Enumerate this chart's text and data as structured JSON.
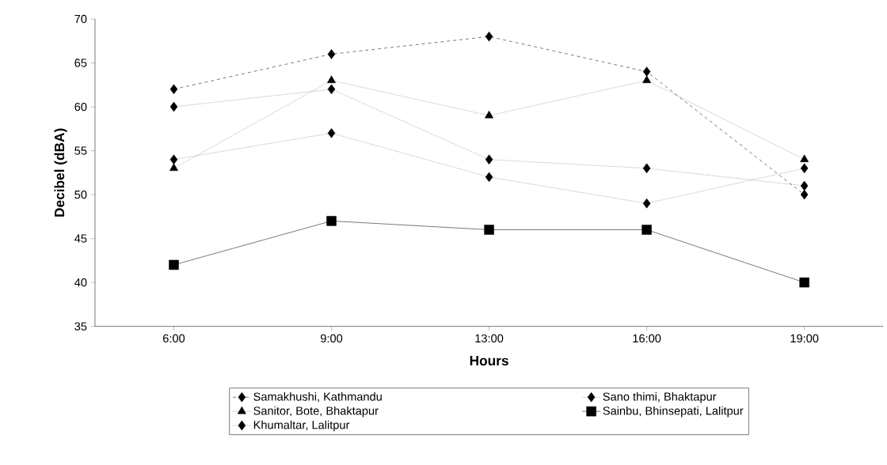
{
  "chart_data": {
    "type": "line",
    "xlabel": "Hours",
    "ylabel": "Decibel (dBA)",
    "categories": [
      "6:00",
      "9:00",
      "13:00",
      "16:00",
      "19:00"
    ],
    "series": [
      {
        "name": "Samakhushi, Kathmandu",
        "color": "#000000",
        "marker": "diamond",
        "line_style": "dashed",
        "values": [
          62,
          66,
          68,
          64,
          50
        ]
      },
      {
        "name": "Sano thimi, Bhaktapur",
        "color": "#000000",
        "marker": "diamond",
        "line_style": "dotted",
        "values": [
          60,
          62,
          54,
          53,
          51
        ]
      },
      {
        "name": "Sanitor, Bote, Bhaktapur",
        "color": "#000000",
        "marker": "triangle",
        "line_style": "dotted",
        "values": [
          53,
          63,
          59,
          63,
          54
        ]
      },
      {
        "name": "Sainbu, Bhinsepati, Lalitpur",
        "color": "#000000",
        "marker": "square",
        "line_style": "solid",
        "values": [
          42,
          47,
          46,
          46,
          40
        ]
      },
      {
        "name": "Khumaltar, Lalitpur",
        "color": "#000000",
        "marker": "diamond",
        "line_style": "dotted",
        "values": [
          54,
          57,
          52,
          49,
          53
        ]
      }
    ],
    "ylim": [
      35,
      70
    ],
    "yticks": [
      35,
      40,
      45,
      50,
      55,
      60,
      65,
      70
    ],
    "grid": false,
    "legend": "bottom"
  }
}
